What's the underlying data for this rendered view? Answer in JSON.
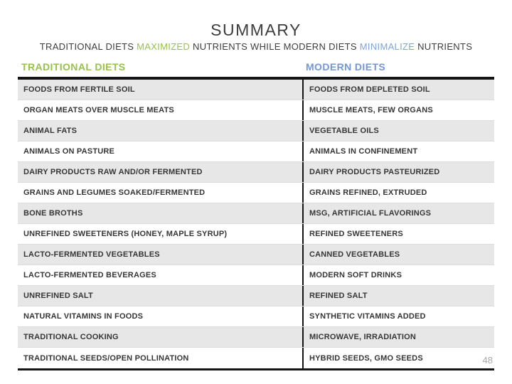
{
  "slide": {
    "title": "SUMMARY",
    "subtitle": {
      "part1": "TRADITIONAL DIETS ",
      "highlight_green": "MAXIMIZED",
      "part2": " NUTRIENTS WHILE MODERN DIETS ",
      "highlight_blue": "MINIMALIZE",
      "part3": " NUTRIENTS"
    },
    "page_number": "48"
  },
  "table": {
    "columns": [
      {
        "header": "TRADITIONAL DIETS",
        "color": "#98C14B"
      },
      {
        "header": "MODERN DIETS",
        "color": "#7396D5"
      }
    ],
    "rows": [
      {
        "traditional": "FOODS FROM FERTILE SOIL",
        "modern": "FOODS FROM DEPLETED SOIL"
      },
      {
        "traditional": "ORGAN MEATS OVER MUSCLE MEATS",
        "modern": "MUSCLE MEATS, FEW ORGANS"
      },
      {
        "traditional": "ANIMAL FATS",
        "modern": "VEGETABLE OILS"
      },
      {
        "traditional": "ANIMALS ON PASTURE",
        "modern": "ANIMALS IN CONFINEMENT"
      },
      {
        "traditional": "DAIRY PRODUCTS RAW AND/OR FERMENTED",
        "modern": "DAIRY PRODUCTS PASTEURIZED"
      },
      {
        "traditional": "GRAINS AND LEGUMES SOAKED/FERMENTED",
        "modern": "GRAINS REFINED, EXTRUDED"
      },
      {
        "traditional": "BONE BROTHS",
        "modern": "MSG, ARTIFICIAL FLAVORINGS"
      },
      {
        "traditional": "UNREFINED SWEETENERS (HONEY, MAPLE SYRUP)",
        "modern": "REFINED SWEETENERS"
      },
      {
        "traditional": "LACTO-FERMENTED VEGETABLES",
        "modern": "CANNED VEGETABLES"
      },
      {
        "traditional": "LACTO-FERMENTED BEVERAGES",
        "modern": "MODERN SOFT DRINKS"
      },
      {
        "traditional": "UNREFINED SALT",
        "modern": "REFINED SALT"
      },
      {
        "traditional": "NATURAL VITAMINS IN FOODS",
        "modern": "SYNTHETIC VITAMINS ADDED"
      },
      {
        "traditional": "TRADITIONAL COOKING",
        "modern": "MICROWAVE, IRRADIATION"
      },
      {
        "traditional": "TRADITIONAL SEEDS/OPEN POLLINATION",
        "modern": "HYBRID SEEDS, GMO SEEDS"
      }
    ]
  },
  "colors": {
    "accent_green": "#98C14B",
    "accent_blue": "#7396D5",
    "row_shade": "#E7E7E7",
    "text": "#363636",
    "page_number": "#A9A9A9"
  }
}
